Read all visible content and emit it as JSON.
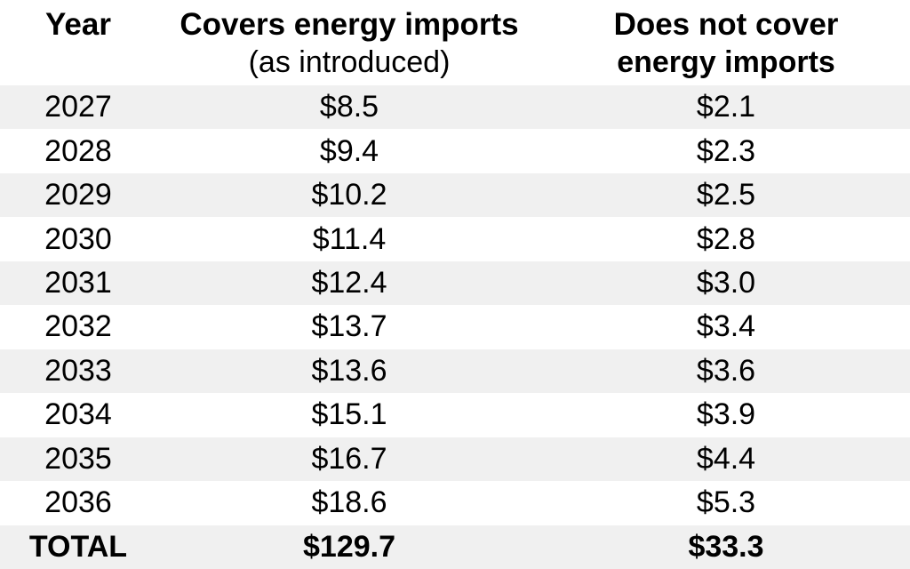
{
  "table": {
    "header": {
      "col1_line1": "Year",
      "col2_line1": "Covers energy imports",
      "col2_line2": "(as introduced)",
      "col3_line1": "Does not cover",
      "col3_line2": "energy imports"
    },
    "rows": [
      {
        "year": "2027",
        "covers": "$8.5",
        "not_covers": "$2.1"
      },
      {
        "year": "2028",
        "covers": "$9.4",
        "not_covers": "$2.3"
      },
      {
        "year": "2029",
        "covers": "$10.2",
        "not_covers": "$2.5"
      },
      {
        "year": "2030",
        "covers": "$11.4",
        "not_covers": "$2.8"
      },
      {
        "year": "2031",
        "covers": "$12.4",
        "not_covers": "$3.0"
      },
      {
        "year": "2032",
        "covers": "$13.7",
        "not_covers": "$3.4"
      },
      {
        "year": "2033",
        "covers": "$13.6",
        "not_covers": "$3.6"
      },
      {
        "year": "2034",
        "covers": "$15.1",
        "not_covers": "$3.9"
      },
      {
        "year": "2035",
        "covers": "$16.7",
        "not_covers": "$4.4"
      },
      {
        "year": "2036",
        "covers": "$18.6",
        "not_covers": "$5.3"
      }
    ],
    "total": {
      "label": "TOTAL",
      "covers": "$129.7",
      "not_covers": "$33.3"
    },
    "colors": {
      "stripe": "#f0f0f0",
      "background": "#ffffff",
      "text": "#000000"
    }
  },
  "chart_data": {
    "type": "table",
    "title": "",
    "columns": [
      "Year",
      "Covers energy imports (as introduced)",
      "Does not cover energy imports"
    ],
    "categories": [
      "2027",
      "2028",
      "2029",
      "2030",
      "2031",
      "2032",
      "2033",
      "2034",
      "2035",
      "2036"
    ],
    "series": [
      {
        "name": "Covers energy imports (as introduced)",
        "values": [
          8.5,
          9.4,
          10.2,
          11.4,
          12.4,
          13.7,
          13.6,
          15.1,
          16.7,
          18.6
        ],
        "total": 129.7
      },
      {
        "name": "Does not cover energy imports",
        "values": [
          2.1,
          2.3,
          2.5,
          2.8,
          3.0,
          3.4,
          3.6,
          3.9,
          4.4,
          5.3
        ],
        "total": 33.3
      }
    ],
    "value_prefix": "$",
    "layout_hints": {
      "striped_rows": true,
      "stripe_color": "#f0f0f0",
      "total_row_bold": true
    }
  }
}
